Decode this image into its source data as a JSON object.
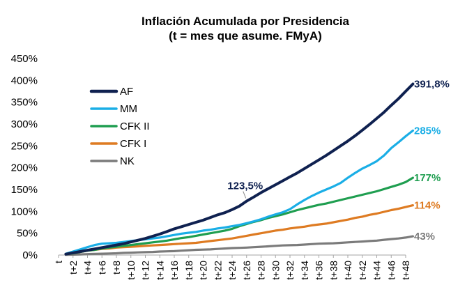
{
  "chart_data": {
    "type": "line",
    "title": "Inflación Acumulada por Presidencia",
    "subtitle": "(t = mes que asume. FMyA)",
    "xlabel": "",
    "ylabel": "",
    "ylim": [
      0,
      450
    ],
    "yticks": [
      "0%",
      "50%",
      "100%",
      "150%",
      "200%",
      "250%",
      "300%",
      "350%",
      "400%",
      "450%"
    ],
    "x_tick_labels": [
      "t",
      "t+2",
      "t+4",
      "t+6",
      "t+8",
      "t+10",
      "t+12",
      "t+14",
      "t+16",
      "t+18",
      "t+20",
      "t+22",
      "t+24",
      "t+26",
      "t+28",
      "t+30",
      "t+32",
      "t+34",
      "t+36",
      "t+38",
      "t+40",
      "t+42",
      "t+44",
      "t+46",
      "t+48"
    ],
    "legend_position": "top-left",
    "grid": false,
    "series": [
      {
        "name": "AF",
        "color": "#0f2150",
        "end_label": "391,8%",
        "points": [
          [
            1,
            2
          ],
          [
            2,
            5
          ],
          [
            3,
            8
          ],
          [
            4,
            11
          ],
          [
            5,
            14
          ],
          [
            6,
            17
          ],
          [
            7,
            20
          ],
          [
            8,
            23
          ],
          [
            9,
            26
          ],
          [
            10,
            30
          ],
          [
            11,
            34
          ],
          [
            12,
            38
          ],
          [
            13,
            43
          ],
          [
            14,
            48
          ],
          [
            15,
            54
          ],
          [
            16,
            60
          ],
          [
            17,
            65
          ],
          [
            18,
            70
          ],
          [
            19,
            75
          ],
          [
            20,
            80
          ],
          [
            21,
            86
          ],
          [
            22,
            92
          ],
          [
            23,
            97
          ],
          [
            24,
            104
          ],
          [
            25,
            112
          ],
          [
            26,
            123.5
          ],
          [
            27,
            133
          ],
          [
            28,
            143
          ],
          [
            29,
            152
          ],
          [
            30,
            161
          ],
          [
            31,
            170
          ],
          [
            32,
            179
          ],
          [
            33,
            188
          ],
          [
            34,
            198
          ],
          [
            35,
            208
          ],
          [
            36,
            218
          ],
          [
            37,
            228
          ],
          [
            38,
            239
          ],
          [
            39,
            250
          ],
          [
            40,
            261
          ],
          [
            41,
            273
          ],
          [
            42,
            286
          ],
          [
            43,
            299
          ],
          [
            44,
            313
          ],
          [
            45,
            327
          ],
          [
            46,
            343
          ],
          [
            47,
            358
          ],
          [
            48,
            375
          ],
          [
            49,
            391.8
          ]
        ]
      },
      {
        "name": "MM",
        "color": "#1aaee6",
        "end_label": "285%",
        "points": [
          [
            1,
            3
          ],
          [
            2,
            8
          ],
          [
            3,
            13
          ],
          [
            4,
            18
          ],
          [
            5,
            23
          ],
          [
            6,
            26
          ],
          [
            7,
            27
          ],
          [
            8,
            28
          ],
          [
            9,
            30
          ],
          [
            10,
            32
          ],
          [
            11,
            34
          ],
          [
            12,
            36
          ],
          [
            13,
            38
          ],
          [
            14,
            40
          ],
          [
            15,
            43
          ],
          [
            16,
            46
          ],
          [
            17,
            49
          ],
          [
            18,
            51
          ],
          [
            19,
            53
          ],
          [
            20,
            56
          ],
          [
            21,
            58
          ],
          [
            22,
            61
          ],
          [
            23,
            63
          ],
          [
            24,
            66
          ],
          [
            25,
            69
          ],
          [
            26,
            73
          ],
          [
            27,
            77
          ],
          [
            28,
            82
          ],
          [
            29,
            88
          ],
          [
            30,
            93
          ],
          [
            31,
            98
          ],
          [
            32,
            105
          ],
          [
            33,
            116
          ],
          [
            34,
            126
          ],
          [
            35,
            135
          ],
          [
            36,
            143
          ],
          [
            37,
            150
          ],
          [
            38,
            157
          ],
          [
            39,
            165
          ],
          [
            40,
            177
          ],
          [
            41,
            188
          ],
          [
            42,
            198
          ],
          [
            43,
            206
          ],
          [
            44,
            215
          ],
          [
            45,
            228
          ],
          [
            46,
            245
          ],
          [
            47,
            258
          ],
          [
            48,
            272
          ],
          [
            49,
            285
          ]
        ]
      },
      {
        "name": "CFK II",
        "color": "#1f9e50",
        "end_label": "177%",
        "points": [
          [
            1,
            2
          ],
          [
            2,
            4
          ],
          [
            3,
            7
          ],
          [
            4,
            10
          ],
          [
            5,
            12
          ],
          [
            6,
            15
          ],
          [
            7,
            17
          ],
          [
            8,
            19
          ],
          [
            9,
            21
          ],
          [
            10,
            23
          ],
          [
            11,
            25
          ],
          [
            12,
            27
          ],
          [
            13,
            29
          ],
          [
            14,
            31
          ],
          [
            15,
            33
          ],
          [
            16,
            36
          ],
          [
            17,
            39
          ],
          [
            18,
            41
          ],
          [
            19,
            44
          ],
          [
            20,
            47
          ],
          [
            21,
            50
          ],
          [
            22,
            53
          ],
          [
            23,
            56
          ],
          [
            24,
            60
          ],
          [
            25,
            66
          ],
          [
            26,
            71
          ],
          [
            27,
            76
          ],
          [
            28,
            80
          ],
          [
            29,
            85
          ],
          [
            30,
            89
          ],
          [
            31,
            93
          ],
          [
            32,
            98
          ],
          [
            33,
            103
          ],
          [
            34,
            107
          ],
          [
            35,
            111
          ],
          [
            36,
            115
          ],
          [
            37,
            118
          ],
          [
            38,
            122
          ],
          [
            39,
            126
          ],
          [
            40,
            130
          ],
          [
            41,
            134
          ],
          [
            42,
            138
          ],
          [
            43,
            142
          ],
          [
            44,
            146
          ],
          [
            45,
            151
          ],
          [
            46,
            156
          ],
          [
            47,
            161
          ],
          [
            48,
            167
          ],
          [
            49,
            177
          ]
        ]
      },
      {
        "name": "CFK I",
        "color": "#de7b22",
        "end_label": "114%",
        "points": [
          [
            1,
            2
          ],
          [
            2,
            4
          ],
          [
            3,
            7
          ],
          [
            4,
            10
          ],
          [
            5,
            12
          ],
          [
            6,
            14
          ],
          [
            7,
            15
          ],
          [
            8,
            17
          ],
          [
            9,
            18
          ],
          [
            10,
            19
          ],
          [
            11,
            20
          ],
          [
            12,
            21
          ],
          [
            13,
            22
          ],
          [
            14,
            23
          ],
          [
            15,
            24
          ],
          [
            16,
            25
          ],
          [
            17,
            26
          ],
          [
            18,
            27
          ],
          [
            19,
            28
          ],
          [
            20,
            30
          ],
          [
            21,
            32
          ],
          [
            22,
            34
          ],
          [
            23,
            36
          ],
          [
            24,
            38
          ],
          [
            25,
            41
          ],
          [
            26,
            44
          ],
          [
            27,
            47
          ],
          [
            28,
            50
          ],
          [
            29,
            53
          ],
          [
            30,
            56
          ],
          [
            31,
            58
          ],
          [
            32,
            61
          ],
          [
            33,
            63
          ],
          [
            34,
            65
          ],
          [
            35,
            68
          ],
          [
            36,
            70
          ],
          [
            37,
            72
          ],
          [
            38,
            75
          ],
          [
            39,
            78
          ],
          [
            40,
            81
          ],
          [
            41,
            85
          ],
          [
            42,
            88
          ],
          [
            43,
            92
          ],
          [
            44,
            95
          ],
          [
            45,
            99
          ],
          [
            46,
            103
          ],
          [
            47,
            106
          ],
          [
            48,
            110
          ],
          [
            49,
            114
          ]
        ]
      },
      {
        "name": "NK",
        "color": "#7b7b7b",
        "end_label": "43%",
        "points": [
          [
            1,
            0.5
          ],
          [
            2,
            1
          ],
          [
            3,
            1.5
          ],
          [
            4,
            2
          ],
          [
            5,
            2.5
          ],
          [
            6,
            3
          ],
          [
            7,
            3.5
          ],
          [
            8,
            4
          ],
          [
            9,
            5
          ],
          [
            10,
            5.5
          ],
          [
            11,
            6
          ],
          [
            12,
            6.5
          ],
          [
            13,
            7
          ],
          [
            14,
            8
          ],
          [
            15,
            8.5
          ],
          [
            16,
            9
          ],
          [
            17,
            10
          ],
          [
            18,
            11
          ],
          [
            19,
            12
          ],
          [
            20,
            12.5
          ],
          [
            21,
            13
          ],
          [
            22,
            14
          ],
          [
            23,
            15
          ],
          [
            24,
            16
          ],
          [
            25,
            16.5
          ],
          [
            26,
            17
          ],
          [
            27,
            18
          ],
          [
            28,
            19
          ],
          [
            29,
            20
          ],
          [
            30,
            21
          ],
          [
            31,
            22
          ],
          [
            32,
            22.5
          ],
          [
            33,
            23
          ],
          [
            34,
            24
          ],
          [
            35,
            25
          ],
          [
            36,
            26
          ],
          [
            37,
            26.5
          ],
          [
            38,
            27
          ],
          [
            39,
            28
          ],
          [
            40,
            29
          ],
          [
            41,
            30
          ],
          [
            42,
            31
          ],
          [
            43,
            32
          ],
          [
            44,
            33
          ],
          [
            45,
            35
          ],
          [
            46,
            36.5
          ],
          [
            47,
            38
          ],
          [
            48,
            40
          ],
          [
            49,
            43
          ]
        ]
      }
    ],
    "annotations": [
      {
        "text": "123,5%",
        "x": 26,
        "y": 123.5,
        "series": "AF"
      }
    ]
  }
}
